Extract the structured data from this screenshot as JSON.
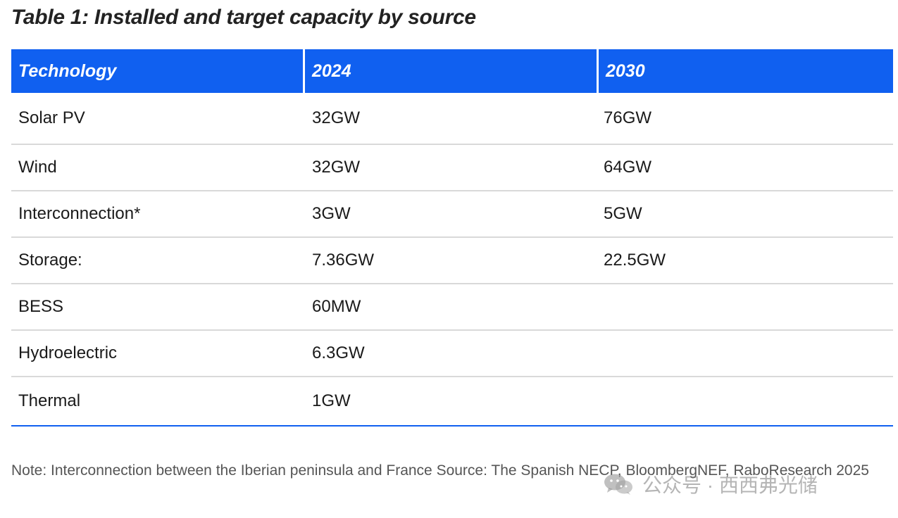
{
  "title": "Table 1: Installed and target capacity by source",
  "table": {
    "headers": [
      "Technology",
      "2024",
      "2030"
    ],
    "rows": [
      [
        "Solar PV",
        "32GW",
        "76GW"
      ],
      [
        "Wind",
        "32GW",
        "64GW"
      ],
      [
        "Interconnection*",
        "3GW",
        "5GW"
      ],
      [
        "Storage:",
        "7.36GW",
        "22.5GW"
      ],
      [
        "BESS",
        "60MW",
        ""
      ],
      [
        "Hydroelectric",
        "6.3GW",
        ""
      ],
      [
        "Thermal",
        "1GW",
        ""
      ]
    ]
  },
  "note": "Note: Interconnection between the Iberian peninsula and France Source: The Spanish NECP, BloombergNEF, RaboResearch 2025",
  "watermark": {
    "text": "公众号 · 西西弗光储",
    "icon": "wechat-icon"
  },
  "colors": {
    "header_bg": "#1060f0",
    "header_text": "#ffffff",
    "row_divider": "#d9d9d9",
    "table_bottom_border": "#1060f0"
  }
}
